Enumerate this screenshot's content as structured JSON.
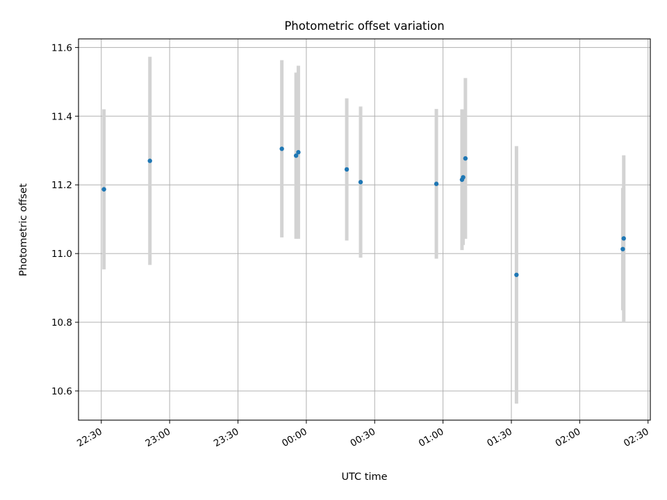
{
  "chart_data": {
    "type": "scatter",
    "title": "Photometric offset variation",
    "xlabel": "UTC time",
    "ylabel": "Photometric offset",
    "xlim": [
      "22:20",
      "02:31"
    ],
    "ylim": [
      10.515,
      11.625
    ],
    "x_ticks": [
      "22:30",
      "23:00",
      "23:30",
      "00:00",
      "00:30",
      "01:00",
      "01:30",
      "02:00",
      "02:30"
    ],
    "y_ticks": [
      10.6,
      10.8,
      11.0,
      11.2,
      11.4,
      11.6
    ],
    "y_tick_labels": [
      "10.6",
      "10.8",
      "11.0",
      "11.2",
      "11.4",
      "11.6"
    ],
    "grid": true,
    "marker_color": "#1f77b4",
    "errorbar_color": "#d3d3d3",
    "points": [
      {
        "x": "22:31:10",
        "y": 11.187,
        "err": 0.233
      },
      {
        "x": "22:51:20",
        "y": 11.27,
        "err": 0.303
      },
      {
        "x": "23:49:15",
        "y": 11.305,
        "err": 0.258
      },
      {
        "x": "23:55:30",
        "y": 11.285,
        "err": 0.242
      },
      {
        "x": "23:56:30",
        "y": 11.295,
        "err": 0.252
      },
      {
        "x": "00:17:45",
        "y": 11.245,
        "err": 0.207
      },
      {
        "x": "00:23:50",
        "y": 11.208,
        "err": 0.22
      },
      {
        "x": "00:57:05",
        "y": 11.203,
        "err": 0.218
      },
      {
        "x": "01:08:20",
        "y": 11.215,
        "err": 0.205
      },
      {
        "x": "01:08:50",
        "y": 11.222,
        "err": 0.197
      },
      {
        "x": "01:09:50",
        "y": 11.277,
        "err": 0.234
      },
      {
        "x": "01:32:15",
        "y": 10.938,
        "err": 0.375
      },
      {
        "x": "02:18:55",
        "y": 11.013,
        "err": 0.178
      },
      {
        "x": "02:19:20",
        "y": 11.044,
        "err": 0.242
      }
    ]
  }
}
